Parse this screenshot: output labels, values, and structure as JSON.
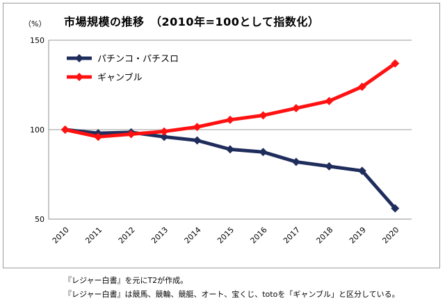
{
  "chart_data": {
    "type": "line",
    "title": "市場規模の推移　（2010年=100として指数化）",
    "unit_label": "（%）",
    "x": [
      "2010",
      "2011",
      "2012",
      "2013",
      "2014",
      "2015",
      "2016",
      "2017",
      "2018",
      "2019",
      "2020"
    ],
    "yticks": [
      "150",
      "100",
      "50"
    ],
    "ylim": [
      50,
      150
    ],
    "grid": true,
    "legend_placement": "top-left",
    "series": [
      {
        "name": "パチンコ・パチスロ",
        "color": "#1f2d5c",
        "values": [
          100,
          98,
          98.5,
          96,
          94,
          89,
          87.5,
          82,
          79.5,
          77,
          56
        ]
      },
      {
        "name": "ギャンブル",
        "color": "#ff1111",
        "values": [
          100,
          96,
          97.5,
          99,
          101.5,
          105.5,
          108,
          112,
          116,
          124,
          137
        ]
      }
    ]
  },
  "notes": [
    "『レジャー白書』を元にT2が作成。",
    "『レジャー白書』は競馬、競輪、競艇、オート、宝くじ、totoを「ギャンブル」と区分している。"
  ]
}
